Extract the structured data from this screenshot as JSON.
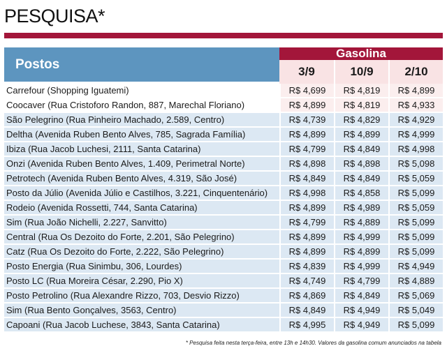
{
  "title": "PESQUISA*",
  "header": {
    "postos": "Postos",
    "fuel": "Gasolina",
    "dates": [
      "3/9",
      "10/9",
      "2/10"
    ]
  },
  "rows": [
    {
      "name": "Carrefour (Shopping Iguatemi)",
      "v": [
        "R$ 4,699",
        "R$ 4,819",
        "R$ 4,899"
      ]
    },
    {
      "name": "Coocaver (Rua Cristoforo Randon, 887, Marechal Floriano)",
      "v": [
        "R$ 4,899",
        "R$ 4,819",
        "R$ 4,933"
      ]
    },
    {
      "name": "São Pelegrino (Rua Pinheiro Machado, 2.589, Centro)",
      "v": [
        "R$ 4,739",
        "R$ 4,829",
        "R$ 4,929"
      ]
    },
    {
      "name": "Deltha (Avenida Ruben Bento Alves, 785, Sagrada Família)",
      "v": [
        "R$ 4,899",
        "R$ 4,899",
        "R$ 4,999"
      ]
    },
    {
      "name": "Ibiza (Rua Jacob Luchesi, 2111, Santa Catarina)",
      "v": [
        "R$ 4,799",
        "R$ 4,849",
        "R$ 4,998"
      ]
    },
    {
      "name": "Onzi (Avenida Ruben Bento Alves, 1.409, Perimetral Norte)",
      "v": [
        "R$ 4,898",
        "R$ 4,898",
        "R$ 5,098"
      ]
    },
    {
      "name": "Petrotech (Avenida Ruben Bento Alves, 4.319, São José)",
      "v": [
        "R$ 4,849",
        "R$ 4,849",
        "R$ 5,059"
      ]
    },
    {
      "name": "Posto da Júlio (Avenida Júlio e Castilhos, 3.221, Cinquentenário)",
      "v": [
        "R$ 4,998",
        "R$ 4,858",
        "R$ 5,099"
      ]
    },
    {
      "name": "Rodeio (Avenida Rossetti, 744, Santa Catarina)",
      "v": [
        "R$ 4,899",
        "R$ 4,989",
        "R$ 5,059"
      ]
    },
    {
      "name": "Sim (Rua João Nichelli, 2.227, Sanvitto)",
      "v": [
        "R$ 4,799",
        "R$ 4,889",
        "R$ 5,099"
      ]
    },
    {
      "name": "Central (Rua Os Dezoito do Forte, 2.201, São Pelegrino)",
      "v": [
        "R$ 4,899",
        "R$ 4,999",
        "R$ 5,099"
      ]
    },
    {
      "name": "Catz (Rua Os Dezoito do Forte, 2.222, São Pelegrino)",
      "v": [
        "R$ 4,899",
        "R$ 4,899",
        "R$ 5,099"
      ]
    },
    {
      "name": "Posto Energia (Rua Sinimbu, 306, Lourdes)",
      "v": [
        "R$ 4,839",
        "R$  4,999",
        "R$ 4,949"
      ]
    },
    {
      "name": "Posto LC (Rua Moreira César, 2.290, Pio X)",
      "v": [
        "R$ 4,749",
        "R$ 4,799",
        "R$ 4,889"
      ]
    },
    {
      "name": "Posto Petrolino (Rua Alexandre Rizzo, 703, Desvio Rizzo)",
      "v": [
        "R$ 4,869",
        "R$ 4,849",
        "R$ 5,069"
      ]
    },
    {
      "name": "Sim (Rua Bento Gonçalves, 3563, Centro)",
      "v": [
        "R$ 4,849",
        "R$ 4,949",
        "R$ 5,049"
      ]
    },
    {
      "name": "Capoani (Rua Jacob Luchese, 3843, Santa Catarina)",
      "v": [
        "R$ 4,995",
        "R$ 4,949",
        "R$ 5,099"
      ]
    }
  ],
  "footnote": "* Pesquisa feita nesta terça-feira, entre 13h e 14h30. Valores da gasolina comum anunciados na tabela",
  "colors": {
    "accent": "#a3163a",
    "header_blue": "#5d95bf",
    "row_blue": "#dce8f3",
    "row_pink": "#fbeeee"
  }
}
